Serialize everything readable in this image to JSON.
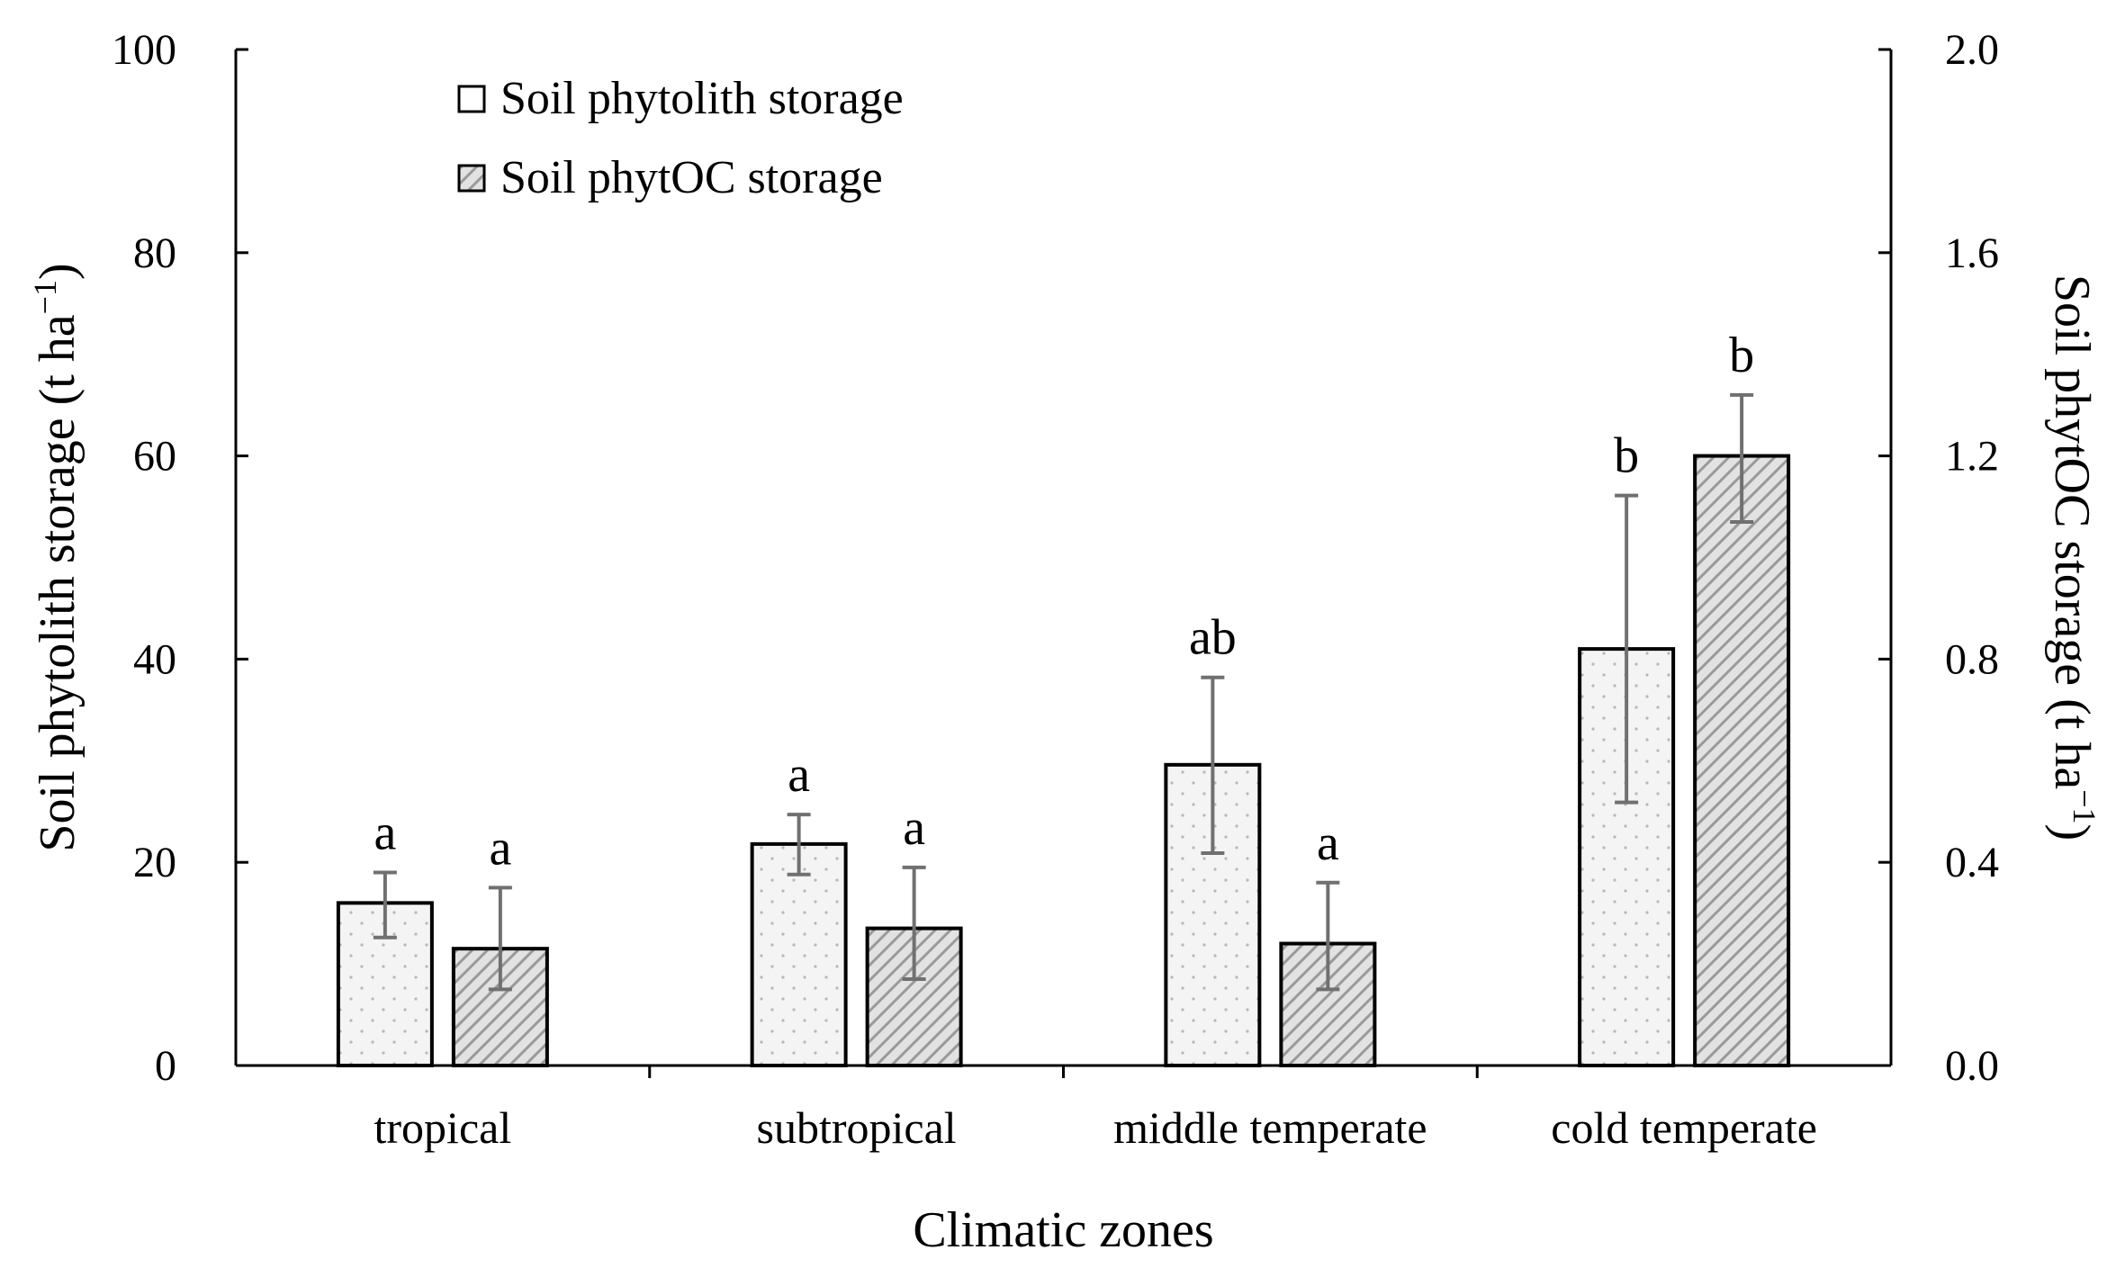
{
  "chart_data": {
    "type": "bar",
    "categories": [
      "tropical",
      "subtropical",
      "middle temperate",
      "cold temperate"
    ],
    "xlabel": "Climatic zones",
    "ylabel_left": "Soil phytolith storage (t ha",
    "ylabel_left_sup": "−1",
    "ylabel_left_close": ")",
    "ylabel_right": "Soil phytOC storage (t ha",
    "ylabel_right_sup": "−1",
    "ylabel_right_close": ")",
    "ylim_left": [
      0,
      100
    ],
    "ylim_right": [
      0,
      2.0
    ],
    "yticks_left": [
      "0",
      "20",
      "40",
      "60",
      "80",
      "100"
    ],
    "yticks_right": [
      "0.0",
      "0.4",
      "0.8",
      "1.2",
      "1.6",
      "2.0"
    ],
    "legend_position": "top-left",
    "grid": false,
    "series": [
      {
        "name": "Soil phytolith storage",
        "axis": "left",
        "pattern": "dots",
        "values": [
          16.0,
          21.8,
          29.6,
          41.0
        ],
        "error_low": [
          12.6,
          18.8,
          20.9,
          25.9
        ],
        "error_high": [
          19.0,
          24.7,
          38.2,
          56.1
        ],
        "labels": [
          "a",
          "a",
          "ab",
          "b"
        ]
      },
      {
        "name": "Soil phytOC storage",
        "axis": "right",
        "pattern": "hatch",
        "values": [
          0.23,
          0.27,
          0.24,
          1.2
        ],
        "error_low": [
          0.15,
          0.17,
          0.15,
          1.07
        ],
        "error_high": [
          0.35,
          0.39,
          0.36,
          1.32
        ],
        "labels": [
          "a",
          "a",
          "a",
          "b"
        ]
      }
    ]
  }
}
